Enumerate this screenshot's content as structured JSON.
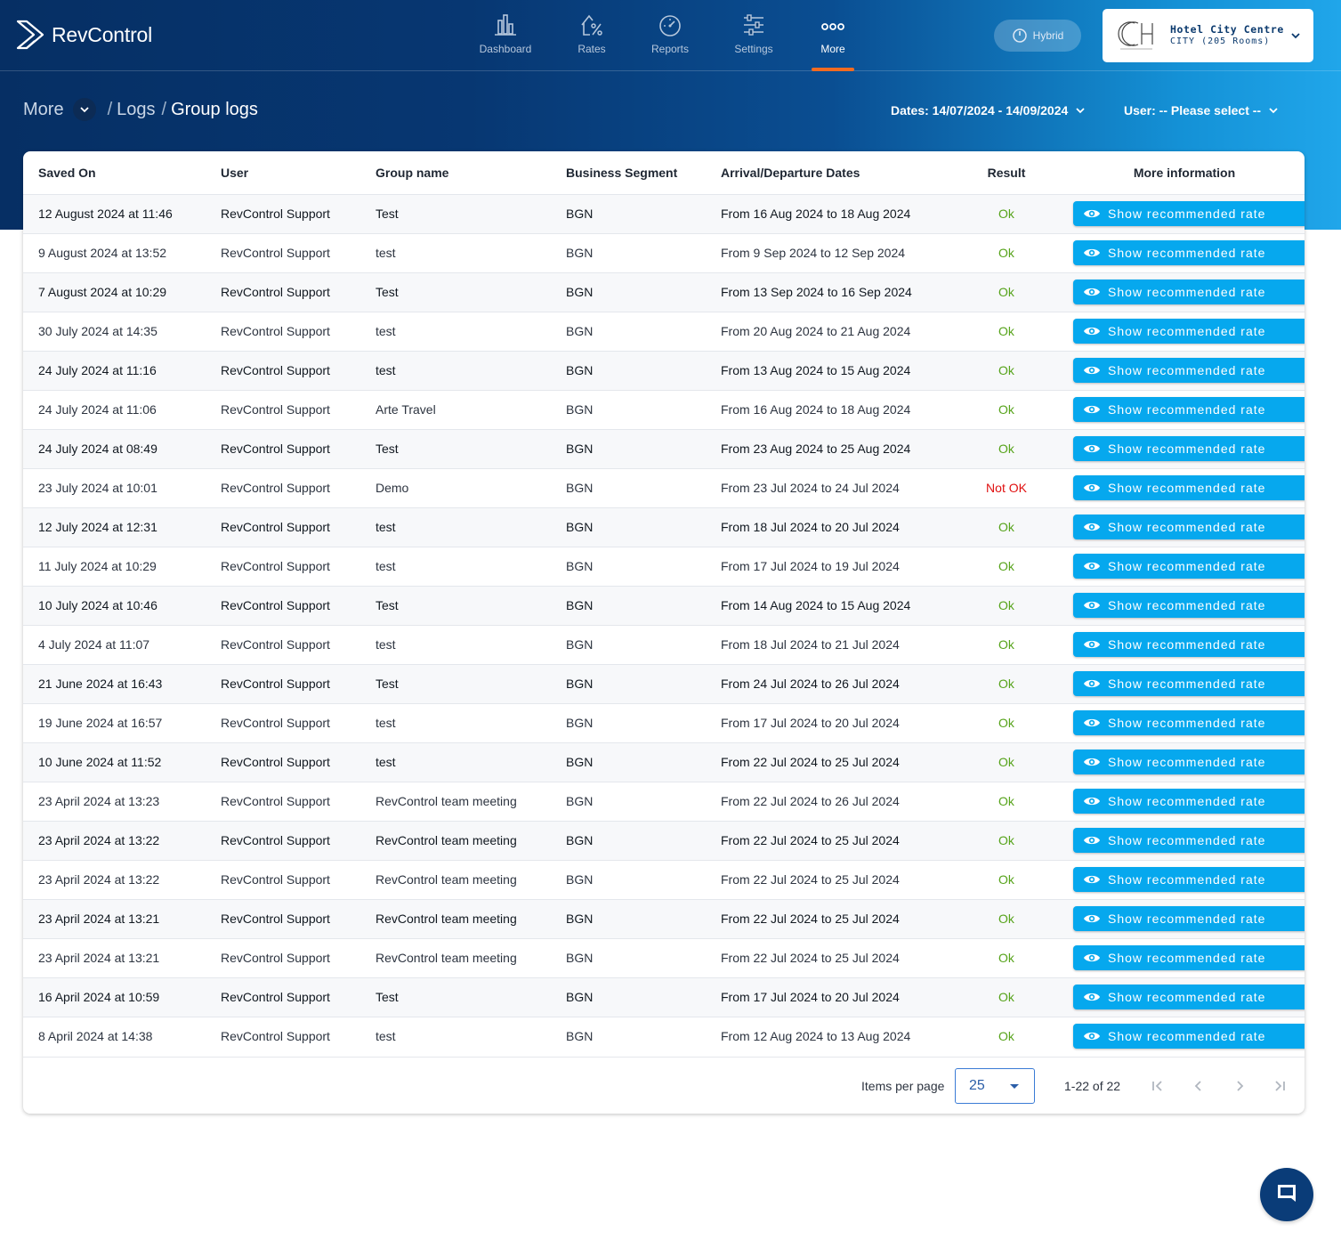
{
  "app": {
    "name": "RevControl"
  },
  "nav": {
    "items": [
      {
        "label": "Dashboard",
        "icon": "bar-chart-icon"
      },
      {
        "label": "Rates",
        "icon": "percent-house-icon"
      },
      {
        "label": "Reports",
        "icon": "gauge-icon"
      },
      {
        "label": "Settings",
        "icon": "sliders-icon"
      },
      {
        "label": "More",
        "icon": "more-dots-icon",
        "active": true
      }
    ]
  },
  "mode": {
    "label": "Hybrid"
  },
  "hotel": {
    "name": "Hotel City Centre",
    "subtitle": "CITY (205 Rooms)"
  },
  "breadcrumb": {
    "root": "More",
    "level1": "Logs",
    "current": "Group logs",
    "sep": "/"
  },
  "filters": {
    "dates": "Dates: 14/07/2024 - 14/09/2024",
    "user": "User: -- Please select --"
  },
  "table": {
    "headers": [
      "Saved On",
      "User",
      "Group name",
      "Business Segment",
      "Arrival/Departure Dates",
      "Result",
      "More information"
    ],
    "button_label": "Show recommended rate",
    "rows": [
      {
        "saved": "12 August 2024 at 11:46",
        "user": "RevControl Support",
        "group": "Test",
        "segment": "BGN",
        "dates": "From 16 Aug 2024 to 18 Aug 2024",
        "result": "Ok"
      },
      {
        "saved": "9 August 2024 at 13:52",
        "user": "RevControl Support",
        "group": "test",
        "segment": "BGN",
        "dates": "From 9 Sep 2024 to 12 Sep 2024",
        "result": "Ok"
      },
      {
        "saved": "7 August 2024 at 10:29",
        "user": "RevControl Support",
        "group": "Test",
        "segment": "BGN",
        "dates": "From 13 Sep 2024 to 16 Sep 2024",
        "result": "Ok"
      },
      {
        "saved": "30 July 2024 at 14:35",
        "user": "RevControl Support",
        "group": "test",
        "segment": "BGN",
        "dates": "From 20 Aug 2024 to 21 Aug 2024",
        "result": "Ok"
      },
      {
        "saved": "24 July 2024 at 11:16",
        "user": "RevControl Support",
        "group": "test",
        "segment": "BGN",
        "dates": "From 13 Aug 2024 to 15 Aug 2024",
        "result": "Ok"
      },
      {
        "saved": "24 July 2024 at 11:06",
        "user": "RevControl Support",
        "group": "Arte Travel",
        "segment": "BGN",
        "dates": "From 16 Aug 2024 to 18 Aug 2024",
        "result": "Ok"
      },
      {
        "saved": "24 July 2024 at 08:49",
        "user": "RevControl Support",
        "group": "Test",
        "segment": "BGN",
        "dates": "From 23 Aug 2024 to 25 Aug 2024",
        "result": "Ok"
      },
      {
        "saved": "23 July 2024 at 10:01",
        "user": "RevControl Support",
        "group": "Demo",
        "segment": "BGN",
        "dates": "From 23 Jul 2024 to 24 Jul 2024",
        "result": "Not OK"
      },
      {
        "saved": "12 July 2024 at 12:31",
        "user": "RevControl Support",
        "group": "test",
        "segment": "BGN",
        "dates": "From 18 Jul 2024 to 20 Jul 2024",
        "result": "Ok"
      },
      {
        "saved": "11 July 2024 at 10:29",
        "user": "RevControl Support",
        "group": "test",
        "segment": "BGN",
        "dates": "From 17 Jul 2024 to 19 Jul 2024",
        "result": "Ok"
      },
      {
        "saved": "10 July 2024 at 10:46",
        "user": "RevControl Support",
        "group": "Test",
        "segment": "BGN",
        "dates": "From 14 Aug 2024 to 15 Aug 2024",
        "result": "Ok"
      },
      {
        "saved": "4 July 2024 at 11:07",
        "user": "RevControl Support",
        "group": "test",
        "segment": "BGN",
        "dates": "From 18 Jul 2024 to 21 Jul 2024",
        "result": "Ok"
      },
      {
        "saved": "21 June 2024 at 16:43",
        "user": "RevControl Support",
        "group": "Test",
        "segment": "BGN",
        "dates": "From 24 Jul 2024 to 26 Jul 2024",
        "result": "Ok"
      },
      {
        "saved": "19 June 2024 at 16:57",
        "user": "RevControl Support",
        "group": "test",
        "segment": "BGN",
        "dates": "From 17 Jul 2024 to 20 Jul 2024",
        "result": "Ok"
      },
      {
        "saved": "10 June 2024 at 11:52",
        "user": "RevControl Support",
        "group": "test",
        "segment": "BGN",
        "dates": "From 22 Jul 2024 to 25 Jul 2024",
        "result": "Ok"
      },
      {
        "saved": "23 April 2024 at 13:23",
        "user": "RevControl Support",
        "group": "RevControl team meeting",
        "segment": "BGN",
        "dates": "From 22 Jul 2024 to 26 Jul 2024",
        "result": "Ok"
      },
      {
        "saved": "23 April 2024 at 13:22",
        "user": "RevControl Support",
        "group": "RevControl team meeting",
        "segment": "BGN",
        "dates": "From 22 Jul 2024 to 25 Jul 2024",
        "result": "Ok"
      },
      {
        "saved": "23 April 2024 at 13:22",
        "user": "RevControl Support",
        "group": "RevControl team meeting",
        "segment": "BGN",
        "dates": "From 22 Jul 2024 to 25 Jul 2024",
        "result": "Ok"
      },
      {
        "saved": "23 April 2024 at 13:21",
        "user": "RevControl Support",
        "group": "RevControl team meeting",
        "segment": "BGN",
        "dates": "From 22 Jul 2024 to 25 Jul 2024",
        "result": "Ok"
      },
      {
        "saved": "23 April 2024 at 13:21",
        "user": "RevControl Support",
        "group": "RevControl team meeting",
        "segment": "BGN",
        "dates": "From 22 Jul 2024 to 25 Jul 2024",
        "result": "Ok"
      },
      {
        "saved": "16 April 2024 at 10:59",
        "user": "RevControl Support",
        "group": "Test",
        "segment": "BGN",
        "dates": "From 17 Jul 2024 to 20 Jul 2024",
        "result": "Ok"
      },
      {
        "saved": "8 April 2024 at 14:38",
        "user": "RevControl Support",
        "group": "test",
        "segment": "BGN",
        "dates": "From 12 Aug 2024 to 13 Aug 2024",
        "result": "Ok"
      }
    ]
  },
  "pagination": {
    "items_per_page_label": "Items per page",
    "page_size": "25",
    "range": "1-22 of 22"
  },
  "colors": {
    "accent": "#06a8ee",
    "nav_active": "#f26b21",
    "ok": "#56a31a",
    "not_ok": "#e01010",
    "header_dark": "#062f64"
  }
}
